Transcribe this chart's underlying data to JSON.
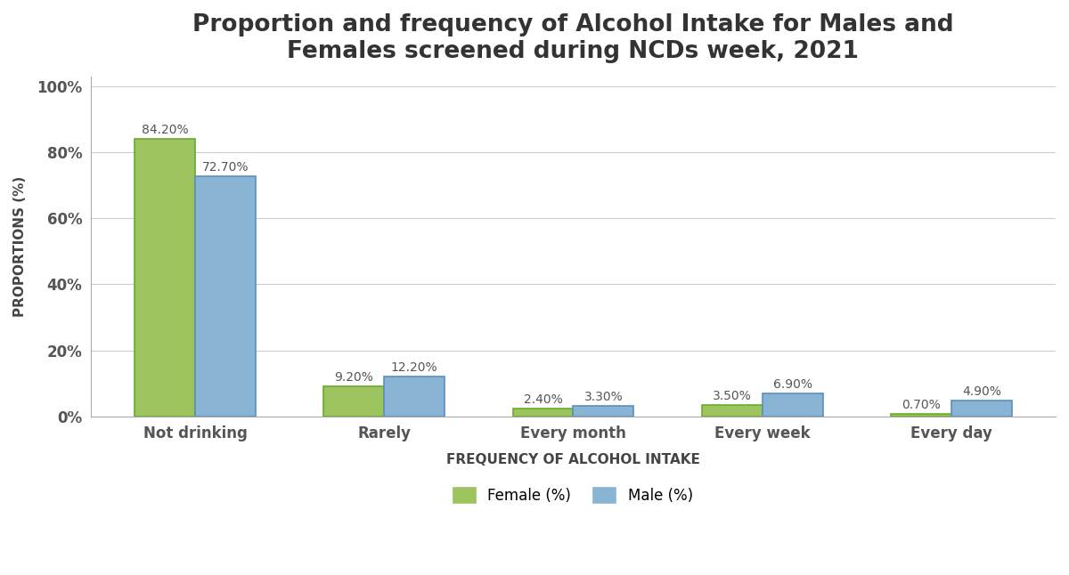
{
  "title": "Proportion and frequency of Alcohol Intake for Males and\nFemales screened during NCDs week, 2021",
  "categories": [
    "Not drinking",
    "Rarely",
    "Every month",
    "Every week",
    "Every day"
  ],
  "female_values": [
    84.2,
    9.2,
    2.4,
    3.5,
    0.7
  ],
  "male_values": [
    72.7,
    12.2,
    3.3,
    6.9,
    4.9
  ],
  "female_labels": [
    "84.20%",
    "9.20%",
    "2.40%",
    "3.50%",
    "0.70%"
  ],
  "male_labels": [
    "72.70%",
    "12.20%",
    "3.30%",
    "6.90%",
    "4.90%"
  ],
  "female_color": "#9dc45f",
  "female_edge_color": "#6aaa2a",
  "male_color": "#8ab4d4",
  "male_edge_color": "#5a8fbf",
  "xlabel": "FREQUENCY OF ALCOHOL INTAKE",
  "ylabel": "PROPORTIONS (%)",
  "ylim": [
    0,
    100
  ],
  "yticks": [
    0,
    20,
    40,
    60,
    80,
    100
  ],
  "ytick_labels": [
    "0%",
    "20%",
    "40%",
    "60%",
    "80%",
    "100%"
  ],
  "legend_female": "Female (%)",
  "legend_male": "Male (%)",
  "background_color": "#ffffff",
  "title_fontsize": 19,
  "axis_label_fontsize": 11,
  "tick_label_fontsize": 12,
  "bar_label_fontsize": 10,
  "legend_fontsize": 12,
  "bar_width": 0.32
}
